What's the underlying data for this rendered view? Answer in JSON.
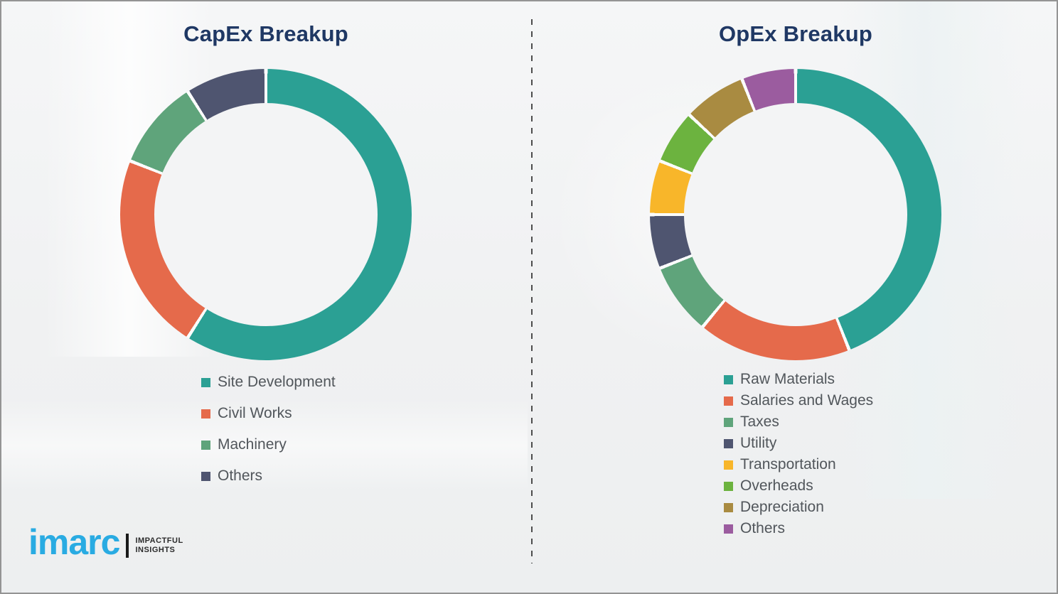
{
  "capex": {
    "title": "CapEx Breakup"
  },
  "opex": {
    "title": "OpEx Breakup"
  },
  "logo": {
    "brand": "imarc",
    "tagline_line1": "IMPACTFUL",
    "tagline_line2": "INSIGHTS",
    "brand_color": "#29abe2"
  },
  "style": {
    "title_color": "#1f3864",
    "legend_text_color": "#51565b",
    "divider_color": "#4c4c4c",
    "segment_gap_color": "#fbfcfc"
  },
  "chart_data": [
    {
      "type": "pie",
      "subtype": "donut",
      "title": "CapEx Breakup",
      "unit": "%",
      "start_angle_deg": 0,
      "direction": "clockwise",
      "legend_position": "below-left",
      "categories": [
        "Site Development",
        "Civil Works",
        "Machinery",
        "Others"
      ],
      "values": [
        59,
        22,
        10,
        9
      ],
      "colors": [
        "#2ba094",
        "#e56a4b",
        "#5fa47b",
        "#4f5570"
      ]
    },
    {
      "type": "pie",
      "subtype": "donut",
      "title": "OpEx Breakup",
      "unit": "%",
      "start_angle_deg": 0,
      "direction": "clockwise",
      "legend_position": "below-left",
      "categories": [
        "Raw Materials",
        "Salaries and Wages",
        "Taxes",
        "Utility",
        "Transportation",
        "Overheads",
        "Depreciation",
        "Others"
      ],
      "values": [
        44,
        17,
        8,
        6,
        6,
        6,
        7,
        6
      ],
      "colors": [
        "#2ba094",
        "#e56a4b",
        "#5fa47b",
        "#4f5570",
        "#f8b62a",
        "#6cb33f",
        "#a98b41",
        "#9b5c9f"
      ]
    }
  ]
}
